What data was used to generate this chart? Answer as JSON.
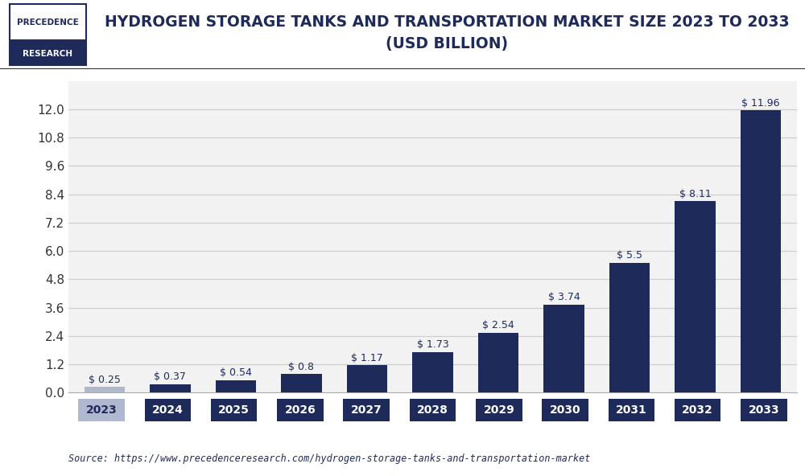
{
  "title_line1": "HYDROGEN STORAGE TANKS AND TRANSPORTATION MARKET SIZE 2023 TO 2033",
  "title_line2": "(USD BILLION)",
  "categories": [
    "2023",
    "2024",
    "2025",
    "2026",
    "2027",
    "2028",
    "2029",
    "2030",
    "2031",
    "2032",
    "2033"
  ],
  "values": [
    0.25,
    0.37,
    0.54,
    0.8,
    1.17,
    1.73,
    2.54,
    3.74,
    5.5,
    8.11,
    11.96
  ],
  "labels": [
    "$ 0.25",
    "$ 0.37",
    "$ 0.54",
    "$ 0.8",
    "$ 1.17",
    "$ 1.73",
    "$ 2.54",
    "$ 3.74",
    "$ 5.5",
    "$ 8.11",
    "$ 11.96"
  ],
  "bar_colors": [
    "#b0b8d0",
    "#1e2a5a",
    "#1e2a5a",
    "#1e2a5a",
    "#1e2a5a",
    "#1e2a5a",
    "#1e2a5a",
    "#1e2a5a",
    "#1e2a5a",
    "#1e2a5a",
    "#1e2a5a"
  ],
  "tick_bg_colors": [
    "#b0b8d0",
    "#1e2a5a",
    "#1e2a5a",
    "#1e2a5a",
    "#1e2a5a",
    "#1e2a5a",
    "#1e2a5a",
    "#1e2a5a",
    "#1e2a5a",
    "#1e2a5a",
    "#1e2a5a"
  ],
  "tick_text_colors": [
    "#1e2a5a",
    "#ffffff",
    "#ffffff",
    "#ffffff",
    "#ffffff",
    "#ffffff",
    "#ffffff",
    "#ffffff",
    "#ffffff",
    "#ffffff",
    "#ffffff"
  ],
  "ylim": [
    0,
    13.2
  ],
  "yticks": [
    0,
    1.2,
    2.4,
    3.6,
    4.8,
    6.0,
    7.2,
    8.4,
    9.6,
    10.8,
    12.0
  ],
  "grid_color": "#cccccc",
  "background_color": "#ffffff",
  "plot_bg_color": "#f2f2f2",
  "source_text": "Source: https://www.precedenceresearch.com/hydrogen-storage-tanks-and-transportation-market",
  "logo_text_top": "PRECEDENCE",
  "logo_text_bottom": "RESEARCH",
  "logo_border_color": "#1e2a5a",
  "title_color": "#1e2a5a",
  "value_label_color": "#1e2a5a",
  "value_label_fontsize": 9,
  "tick_fontsize": 10,
  "ytick_fontsize": 11,
  "title_fontsize": 13.5
}
